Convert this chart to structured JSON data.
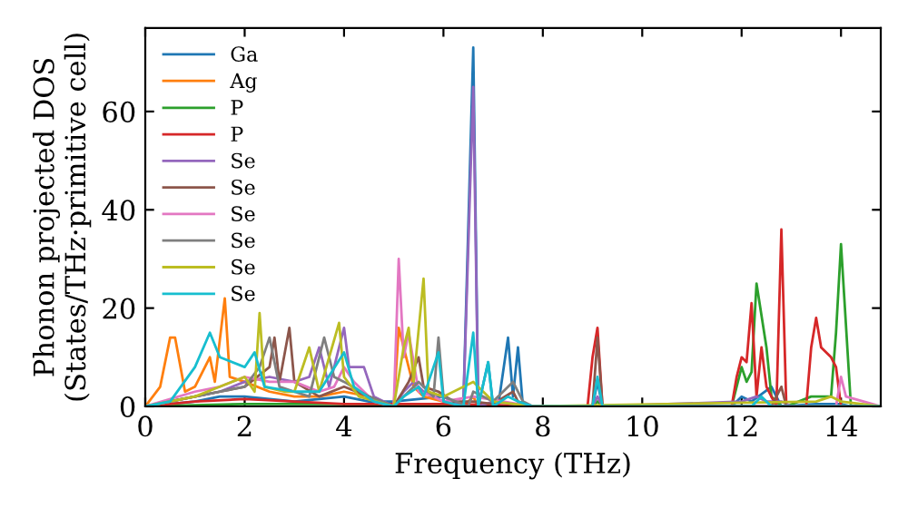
{
  "chart_data": {
    "type": "line",
    "xlabel": "Frequency (THz)",
    "ylabel": "Phonon projected DOS\n(States/THz·primitive cell)",
    "xlim": [
      0,
      14.8
    ],
    "ylim": [
      0,
      77
    ],
    "xticks": [
      0,
      2,
      4,
      6,
      8,
      10,
      12,
      14
    ],
    "yticks": [
      0,
      20,
      40,
      60
    ],
    "grid": false,
    "legend": "top left",
    "marker": "none",
    "line_style": "solid",
    "series": [
      {
        "name": "Ga",
        "color": "#1f77b4",
        "x": [
          0,
          0.5,
          1,
          1.5,
          2,
          2.5,
          3,
          3.5,
          4,
          4.5,
          5,
          5.5,
          6,
          6.4,
          6.6,
          6.7,
          6.9,
          7.0,
          7.1,
          7.3,
          7.4,
          7.5,
          7.6,
          7.8,
          9.0,
          9.1,
          9.2,
          11.8,
          12.0,
          12.2,
          12.6,
          12.8,
          13.5,
          14.0,
          14.2,
          14.8
        ],
        "values": [
          0,
          0.5,
          1,
          2,
          2,
          1.5,
          1,
          1.5,
          2,
          1,
          1,
          1.5,
          2,
          0,
          73,
          0,
          9,
          0,
          0,
          14,
          2,
          12,
          0,
          0,
          0,
          5,
          0,
          0,
          2,
          1,
          4,
          0,
          0.5,
          0.5,
          0,
          0
        ]
      },
      {
        "name": "Ag",
        "color": "#ff7f0e",
        "x": [
          0,
          0.3,
          0.5,
          0.6,
          0.8,
          1.0,
          1.3,
          1.4,
          1.6,
          1.7,
          2.0,
          2.5,
          3.0,
          3.5,
          4.0,
          4.5,
          4.8,
          5.0,
          5.1,
          5.2,
          5.4,
          5.6,
          6.0,
          6.4,
          6.6,
          6.7,
          7.0
        ],
        "values": [
          0,
          4,
          14,
          14,
          3,
          4,
          10,
          5,
          22,
          6,
          5,
          3,
          2,
          2,
          3,
          2,
          0,
          0,
          16,
          12,
          4,
          2,
          1,
          0,
          2,
          0,
          0.5
        ]
      },
      {
        "name": "P",
        "color": "#2ca02c",
        "x": [
          0,
          2,
          4,
          6,
          7.8,
          9.0,
          9.1,
          9.2,
          11.8,
          12.0,
          12.1,
          12.2,
          12.3,
          12.5,
          12.6,
          12.8,
          12.9,
          13.4,
          13.6,
          13.8,
          13.9,
          14.0,
          14.2,
          14.8
        ],
        "values": [
          0,
          0.5,
          0.5,
          0.3,
          0,
          0,
          1,
          0,
          0,
          8,
          5,
          7,
          25,
          12,
          2,
          0,
          0,
          2,
          2,
          2,
          15,
          33,
          0,
          0
        ]
      },
      {
        "name": "P",
        "color": "#d62728",
        "x": [
          0,
          1,
          2,
          3,
          4,
          5,
          6,
          7,
          7.8,
          8.9,
          9.0,
          9.1,
          9.2,
          11.8,
          11.9,
          12.0,
          12.1,
          12.2,
          12.3,
          12.4,
          12.5,
          12.7,
          12.8,
          12.9,
          13.3,
          13.4,
          13.5,
          13.6,
          13.8,
          13.9,
          14.0,
          14.8
        ],
        "values": [
          0,
          1,
          1.5,
          1,
          0.5,
          0.5,
          0.5,
          0.3,
          0,
          0,
          10,
          16,
          0,
          0,
          6,
          10,
          9,
          21,
          2,
          12,
          4,
          0,
          36,
          0,
          0,
          12,
          18,
          12,
          10,
          8,
          0,
          0
        ]
      },
      {
        "name": "Se",
        "color": "#9467bd",
        "x": [
          0,
          1,
          1.5,
          2,
          2.5,
          3,
          3.3,
          3.5,
          3.7,
          4.0,
          4.1,
          4.4,
          4.6,
          5.0,
          5.2,
          5.4,
          5.6,
          6.0,
          6.4,
          6.6,
          6.7,
          7.0,
          7.8,
          9.0,
          9.1,
          9.2,
          12.0,
          12.3,
          12.5,
          12.8,
          13.0,
          14.8
        ],
        "values": [
          0,
          2,
          3,
          5,
          6,
          5,
          6,
          12,
          4,
          16,
          8,
          8,
          2,
          0,
          3,
          5,
          3,
          2,
          0,
          65,
          0,
          1,
          0,
          0,
          2,
          0,
          1,
          2,
          1,
          1,
          0,
          0
        ]
      },
      {
        "name": "Se",
        "color": "#8c564b",
        "x": [
          0,
          1,
          1.5,
          2,
          2.5,
          2.6,
          2.7,
          2.9,
          3.0,
          3.5,
          4.0,
          4.5,
          5.0,
          5.3,
          5.5,
          5.6,
          5.9,
          6.2,
          6.6,
          7.0,
          7.4,
          7.5,
          7.8,
          9.0,
          9.1,
          9.2,
          12.6,
          12.8,
          12.9,
          14.8
        ],
        "values": [
          0,
          2,
          3,
          4,
          8,
          14,
          5,
          16,
          5,
          2,
          4,
          2,
          0,
          5,
          10,
          4,
          3,
          1,
          1,
          0.5,
          3,
          1,
          0,
          0,
          14,
          0,
          0,
          4,
          0,
          0
        ]
      },
      {
        "name": "Se",
        "color": "#e377c2",
        "x": [
          0,
          1,
          1.5,
          2,
          2.5,
          3,
          3.5,
          3.8,
          4.0,
          4.2,
          4.6,
          5.0,
          5.1,
          5.2,
          5.3,
          5.5,
          5.8,
          6.0,
          6.6,
          7.8,
          13.9,
          14.0,
          14.1,
          14.8
        ],
        "values": [
          0,
          3,
          4,
          6,
          5,
          5,
          3,
          4,
          8,
          5,
          1,
          0,
          30,
          10,
          15,
          3,
          2,
          1,
          2,
          0,
          0,
          6,
          2,
          0
        ]
      },
      {
        "name": "Se",
        "color": "#7f7f7f",
        "x": [
          0,
          1,
          1.5,
          2,
          2.3,
          2.5,
          2.7,
          3.0,
          3.3,
          3.6,
          3.8,
          4.0,
          4.5,
          5.0,
          5.3,
          5.5,
          5.8,
          5.9,
          6.0,
          6.5,
          6.6,
          7.0,
          7.4,
          7.6,
          7.8,
          14.8
        ],
        "values": [
          0,
          2,
          3,
          4,
          8,
          14,
          4,
          3,
          2,
          14,
          6,
          5,
          2,
          0,
          3,
          5,
          2,
          14,
          2,
          0,
          3,
          1,
          5,
          1,
          0,
          0
        ]
      },
      {
        "name": "Se",
        "color": "#bcbd22",
        "x": [
          0,
          1,
          1.5,
          2,
          2.2,
          2.3,
          2.4,
          2.8,
          3.0,
          3.3,
          3.5,
          3.9,
          4.0,
          4.3,
          5.0,
          5.2,
          5.3,
          5.4,
          5.6,
          5.7,
          6.0,
          6.6,
          7.0,
          7.8,
          13.5,
          13.8,
          14.0,
          14.8
        ],
        "values": [
          0,
          2,
          4,
          6,
          3,
          19,
          4,
          3,
          3,
          12,
          3,
          17,
          6,
          2,
          0,
          12,
          16,
          5,
          26,
          3,
          2,
          5,
          1,
          0,
          1,
          2,
          1,
          0
        ]
      },
      {
        "name": "Se",
        "color": "#17becf",
        "x": [
          0,
          0.5,
          1,
          1.3,
          1.5,
          2.0,
          2.2,
          2.4,
          3.0,
          3.5,
          4.0,
          4.2,
          4.6,
          5.0,
          5.2,
          5.5,
          5.6,
          5.9,
          6.0,
          6.4,
          6.6,
          6.7,
          6.9,
          7.0,
          7.3,
          7.5,
          7.8,
          9.0,
          9.1,
          9.2,
          12.2,
          12.4,
          12.6,
          14.8
        ],
        "values": [
          0,
          1,
          8,
          15,
          10,
          8,
          11,
          4,
          3,
          3,
          11,
          4,
          1,
          0,
          2,
          4,
          2,
          11,
          1,
          0,
          15,
          0,
          9,
          0,
          2,
          1,
          0,
          0,
          6,
          0,
          0,
          2,
          0,
          0
        ]
      }
    ]
  }
}
